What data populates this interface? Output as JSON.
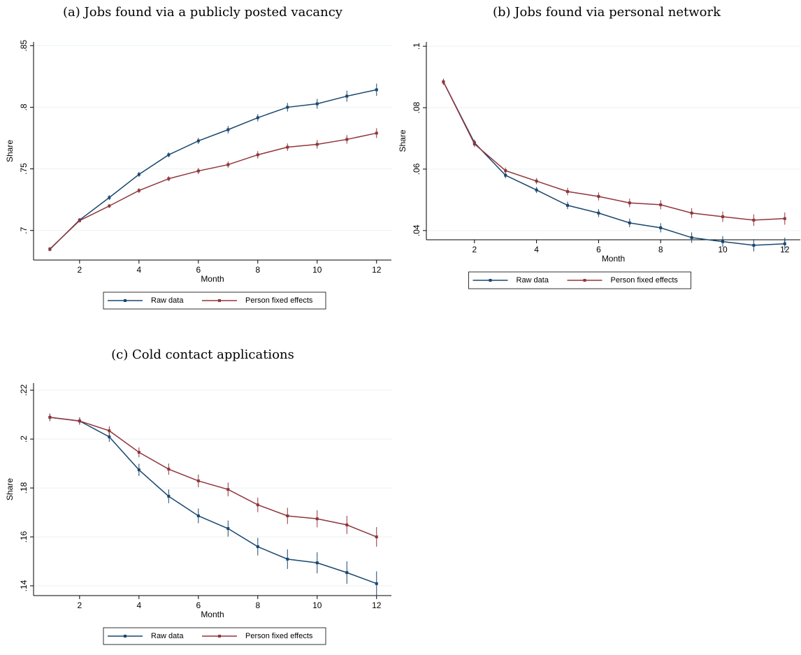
{
  "chart_data": [
    {
      "type": "line",
      "title": "(a) Jobs found via a publicly posted vacancy",
      "x_label": "Month",
      "y_label": "Share",
      "x": [
        1,
        2,
        3,
        4,
        5,
        6,
        7,
        8,
        9,
        10,
        11,
        12
      ],
      "xlim": [
        0.45,
        12.5
      ],
      "xticks": [
        2,
        4,
        6,
        8,
        10,
        12
      ],
      "ylim": [
        0.676,
        0.853
      ],
      "yticks": [
        {
          "value": 0.7,
          "label": ".7"
        },
        {
          "value": 0.75,
          "label": ".75"
        },
        {
          "value": 0.8,
          "label": ".8"
        },
        {
          "value": 0.85,
          "label": ".85"
        }
      ],
      "grid": true,
      "series": [
        {
          "name": "Raw data",
          "color": "#1a476f",
          "values": [
            0.6847,
            0.7085,
            0.7267,
            0.7455,
            0.7614,
            0.7727,
            0.7818,
            0.7915,
            0.8,
            0.8028,
            0.809,
            0.8142
          ],
          "errors": [
            0.0015,
            0.0015,
            0.002,
            0.002,
            0.002,
            0.0025,
            0.003,
            0.003,
            0.0035,
            0.004,
            0.0045,
            0.005
          ]
        },
        {
          "name": "Person fixed effects",
          "color": "#90353b",
          "values": [
            0.685,
            0.708,
            0.7199,
            0.7324,
            0.742,
            0.7483,
            0.7534,
            0.7614,
            0.7676,
            0.7699,
            0.7739,
            0.779
          ],
          "errors": [
            0.0015,
            0.0015,
            0.0015,
            0.002,
            0.002,
            0.0025,
            0.0025,
            0.003,
            0.003,
            0.0035,
            0.0035,
            0.004
          ]
        }
      ]
    },
    {
      "type": "line",
      "title": "(b) Jobs found via personal network",
      "x_label": "Month",
      "y_label": "Share",
      "x": [
        1,
        2,
        3,
        4,
        5,
        6,
        7,
        8,
        9,
        10,
        11,
        12
      ],
      "xlim": [
        0.45,
        12.5
      ],
      "xticks": [
        2,
        4,
        6,
        8,
        10,
        12
      ],
      "ylim": [
        0.037,
        0.1014
      ],
      "yticks": [
        {
          "value": 0.04,
          "label": ".04"
        },
        {
          "value": 0.06,
          "label": ".06"
        },
        {
          "value": 0.08,
          "label": ".08"
        },
        {
          "value": 0.1,
          "label": ".1"
        }
      ],
      "grid": true,
      "series": [
        {
          "name": "Raw data",
          "color": "#1a476f",
          "values": [
            0.0884,
            0.0686,
            0.058,
            0.0532,
            0.0482,
            0.0457,
            0.0425,
            0.0409,
            0.0377,
            0.0364,
            0.0352,
            0.0357
          ],
          "errors": [
            0.001,
            0.001,
            0.001,
            0.001,
            0.0012,
            0.0013,
            0.0014,
            0.0015,
            0.0017,
            0.0018,
            0.002,
            0.002
          ]
        },
        {
          "name": "Person fixed effects",
          "color": "#90353b",
          "values": [
            0.0884,
            0.0682,
            0.0595,
            0.0561,
            0.0527,
            0.0511,
            0.049,
            0.0484,
            0.0457,
            0.0445,
            0.0434,
            0.0439
          ],
          "errors": [
            0.001,
            0.001,
            0.001,
            0.001,
            0.0012,
            0.0013,
            0.0014,
            0.0015,
            0.0016,
            0.0017,
            0.0019,
            0.002
          ]
        }
      ]
    },
    {
      "type": "line",
      "title": "(c) Cold contact applications",
      "x_label": "Month",
      "y_label": "Share",
      "x": [
        1,
        2,
        3,
        4,
        5,
        6,
        7,
        8,
        9,
        10,
        11,
        12
      ],
      "xlim": [
        0.45,
        12.5
      ],
      "xticks": [
        2,
        4,
        6,
        8,
        10,
        12
      ],
      "ylim": [
        0.136,
        0.2229
      ],
      "yticks": [
        {
          "value": 0.14,
          "label": ".14"
        },
        {
          "value": 0.16,
          "label": ".16"
        },
        {
          "value": 0.18,
          "label": ".18"
        },
        {
          "value": 0.2,
          "label": ".2"
        },
        {
          "value": 0.22,
          "label": ".22"
        }
      ],
      "grid": true,
      "series": [
        {
          "name": "Raw data",
          "color": "#1a476f",
          "values": [
            0.2089,
            0.2074,
            0.2009,
            0.1874,
            0.1766,
            0.1686,
            0.1634,
            0.156,
            0.1509,
            0.1494,
            0.1454,
            0.1409
          ],
          "errors": [
            0.0015,
            0.0015,
            0.002,
            0.0025,
            0.0028,
            0.003,
            0.0033,
            0.0036,
            0.004,
            0.0043,
            0.0046,
            0.005
          ]
        },
        {
          "name": "Person fixed effects",
          "color": "#90353b",
          "values": [
            0.2089,
            0.2074,
            0.2034,
            0.1946,
            0.1877,
            0.1829,
            0.1794,
            0.1731,
            0.1686,
            0.1674,
            0.1649,
            0.16
          ],
          "errors": [
            0.0015,
            0.0015,
            0.0018,
            0.002,
            0.0023,
            0.0026,
            0.0028,
            0.003,
            0.0033,
            0.0035,
            0.0037,
            0.004
          ]
        }
      ]
    }
  ]
}
